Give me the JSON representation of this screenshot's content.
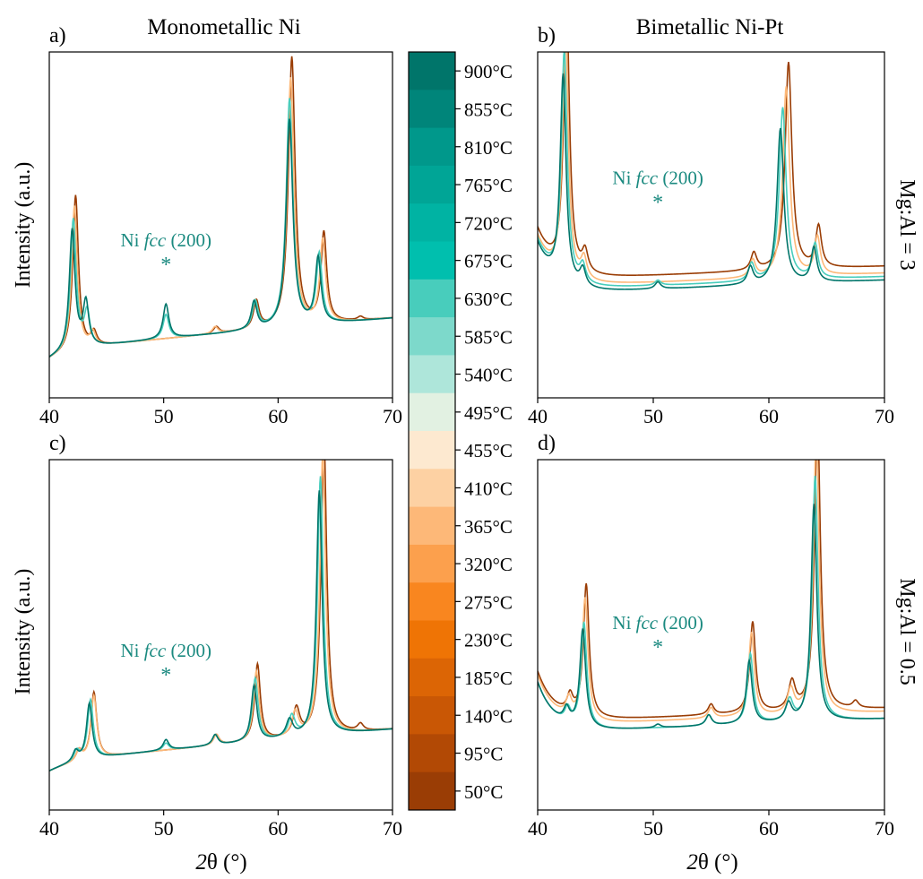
{
  "labels": {
    "title_left": "Monometallic Ni",
    "title_right": "Bimetallic Ni-Pt",
    "ylabel": "Intensity (a.u.)",
    "xlabel_theta": "θ (°)",
    "xlabel_two": "2",
    "row_top": "Mg:Al = 3",
    "row_bottom": "Mg:Al = 0.5",
    "annotation_prefix": "Ni ",
    "annotation_italic": "fcc",
    "annotation_suffix": " (200)",
    "asterisk": "*"
  },
  "colors": {
    "teal": "#1b8a80",
    "orange": "#c0611a",
    "frame": "#000000"
  },
  "colorbar": {
    "labels": [
      "900°C",
      "855°C",
      "810°C",
      "765°C",
      "720°C",
      "675°C",
      "630°C",
      "585°C",
      "540°C",
      "495°C",
      "455°C",
      "410°C",
      "365°C",
      "320°C",
      "275°C",
      "230°C",
      "185°C",
      "140°C",
      "95°C",
      "50°C"
    ],
    "colors": [
      "#00756a",
      "#00857a",
      "#00988b",
      "#00a596",
      "#00b3a3",
      "#00bfae",
      "#48cdbc",
      "#7dd9cb",
      "#aee6da",
      "#e2f1e2",
      "#fde9d0",
      "#fdd1a3",
      "#fdb878",
      "#fca04d",
      "#f9861f",
      "#ef7405",
      "#dc6505",
      "#c95705",
      "#b24905",
      "#9a3d05"
    ]
  },
  "chart_data": [
    {
      "type": "line",
      "panel": "a)",
      "title": "Monometallic Ni",
      "ylabel": "Intensity (a.u.)",
      "xlabel": "",
      "xlim": [
        40,
        70
      ],
      "xticks": [
        40,
        50,
        60,
        70
      ],
      "yticks": [],
      "baseline": 0.14,
      "annotation": {
        "x": 50.2,
        "text": "Ni fcc (200)"
      },
      "series": [
        {
          "temp": "50°C",
          "color": "#9a3d05",
          "baseline_drift": 0.0,
          "peaks": [
            [
              42.3,
              0.45,
              0.3
            ],
            [
              43.9,
              0.04,
              0.3
            ],
            [
              54.6,
              0.02,
              0.3
            ],
            [
              58.1,
              0.08,
              0.3
            ],
            [
              61.2,
              0.78,
              0.35
            ],
            [
              64.0,
              0.26,
              0.3
            ],
            [
              67.2,
              0.01,
              0.3
            ]
          ]
        },
        {
          "temp": "495°C",
          "color": "#fdb878",
          "baseline_drift": 0.0,
          "peaks": [
            [
              42.2,
              0.42,
              0.3
            ],
            [
              43.8,
              0.04,
              0.3
            ],
            [
              54.5,
              0.02,
              0.3
            ],
            [
              58.0,
              0.08,
              0.3
            ],
            [
              61.1,
              0.72,
              0.35
            ],
            [
              63.9,
              0.24,
              0.3
            ]
          ]
        },
        {
          "temp": "720°C",
          "color": "#48cdbc",
          "baseline_drift": 0.0,
          "peaks": [
            [
              42.1,
              0.38,
              0.3
            ],
            [
              43.3,
              0.1,
              0.3
            ],
            [
              50.2,
              0.07,
              0.3
            ],
            [
              58.0,
              0.08,
              0.3
            ],
            [
              61.0,
              0.66,
              0.35
            ],
            [
              63.6,
              0.2,
              0.3
            ]
          ]
        },
        {
          "temp": "900°C",
          "color": "#00756a",
          "baseline_drift": 0.0,
          "peaks": [
            [
              42.0,
              0.35,
              0.3
            ],
            [
              43.2,
              0.13,
              0.3
            ],
            [
              50.2,
              0.1,
              0.3
            ],
            [
              57.9,
              0.08,
              0.3
            ],
            [
              61.0,
              0.6,
              0.35
            ],
            [
              63.5,
              0.19,
              0.3
            ]
          ]
        }
      ]
    },
    {
      "type": "line",
      "panel": "b)",
      "title": "Bimetallic Ni-Pt",
      "ylabel": "",
      "xlabel": "",
      "xlim": [
        40,
        70
      ],
      "xticks": [
        40,
        50,
        60,
        70
      ],
      "yticks": [],
      "baseline": 0.32,
      "annotation": {
        "x": 50.4,
        "text": "Ni fcc (200)"
      },
      "series": [
        {
          "temp": "50°C",
          "color": "#9a3d05",
          "baseline_drift": 0.02,
          "peaks": [
            [
              42.5,
              0.78,
              0.3
            ],
            [
              44.1,
              0.06,
              0.3
            ],
            [
              58.7,
              0.05,
              0.3
            ],
            [
              61.7,
              0.6,
              0.35
            ],
            [
              64.3,
              0.12,
              0.3
            ]
          ]
        },
        {
          "temp": "495°C",
          "color": "#fdb878",
          "baseline_drift": 0.0,
          "peaks": [
            [
              42.4,
              0.72,
              0.3
            ],
            [
              44.0,
              0.06,
              0.3
            ],
            [
              58.6,
              0.05,
              0.3
            ],
            [
              61.5,
              0.55,
              0.35
            ],
            [
              64.2,
              0.11,
              0.3
            ]
          ]
        },
        {
          "temp": "720°C",
          "color": "#48cdbc",
          "baseline_drift": -0.01,
          "peaks": [
            [
              42.3,
              0.66,
              0.3
            ],
            [
              43.9,
              0.05,
              0.3
            ],
            [
              50.4,
              0.015,
              0.3
            ],
            [
              58.5,
              0.05,
              0.3
            ],
            [
              61.2,
              0.5,
              0.35
            ],
            [
              64.0,
              0.1,
              0.3
            ]
          ]
        },
        {
          "temp": "900°C",
          "color": "#00756a",
          "baseline_drift": -0.02,
          "peaks": [
            [
              42.2,
              0.6,
              0.3
            ],
            [
              43.9,
              0.05,
              0.3
            ],
            [
              50.4,
              0.02,
              0.3
            ],
            [
              58.4,
              0.05,
              0.3
            ],
            [
              61.0,
              0.45,
              0.35
            ],
            [
              63.9,
              0.1,
              0.3
            ]
          ]
        }
      ]
    },
    {
      "type": "line",
      "panel": "c)",
      "title": "",
      "ylabel": "Intensity (a.u.)",
      "xlabel": "2θ (°)",
      "xlim": [
        40,
        70
      ],
      "xticks": [
        40,
        50,
        60,
        70
      ],
      "yticks": [],
      "baseline": 0.14,
      "annotation": {
        "x": 50.2,
        "text": "Ni fcc (200)"
      },
      "series": [
        {
          "temp": "50°C",
          "color": "#9a3d05",
          "baseline_drift": 0.0,
          "peaks": [
            [
              42.6,
              0.03,
              0.3
            ],
            [
              43.9,
              0.19,
              0.3
            ],
            [
              54.6,
              0.03,
              0.3
            ],
            [
              58.2,
              0.22,
              0.3
            ],
            [
              61.6,
              0.08,
              0.35
            ],
            [
              64.0,
              0.86,
              0.3
            ],
            [
              67.2,
              0.02,
              0.3
            ]
          ]
        },
        {
          "temp": "495°C",
          "color": "#fdb878",
          "baseline_drift": 0.0,
          "peaks": [
            [
              42.6,
              0.03,
              0.3
            ],
            [
              43.9,
              0.18,
              0.3
            ],
            [
              54.6,
              0.03,
              0.3
            ],
            [
              58.1,
              0.2,
              0.3
            ],
            [
              61.5,
              0.07,
              0.35
            ],
            [
              63.9,
              0.8,
              0.3
            ]
          ]
        },
        {
          "temp": "720°C",
          "color": "#48cdbc",
          "baseline_drift": 0.0,
          "peaks": [
            [
              42.4,
              0.03,
              0.3
            ],
            [
              43.6,
              0.17,
              0.3
            ],
            [
              50.2,
              0.02,
              0.3
            ],
            [
              54.5,
              0.03,
              0.3
            ],
            [
              58.0,
              0.18,
              0.3
            ],
            [
              61.2,
              0.06,
              0.35
            ],
            [
              63.7,
              0.74,
              0.3
            ]
          ]
        },
        {
          "temp": "900°C",
          "color": "#00756a",
          "baseline_drift": 0.0,
          "peaks": [
            [
              42.3,
              0.03,
              0.3
            ],
            [
              43.5,
              0.16,
              0.3
            ],
            [
              50.2,
              0.03,
              0.3
            ],
            [
              54.5,
              0.03,
              0.3
            ],
            [
              57.9,
              0.16,
              0.3
            ],
            [
              61.0,
              0.05,
              0.35
            ],
            [
              63.6,
              0.7,
              0.3
            ]
          ]
        }
      ]
    },
    {
      "type": "line",
      "panel": "d)",
      "title": "",
      "ylabel": "",
      "xlabel": "2θ (°)",
      "xlim": [
        40,
        70
      ],
      "xticks": [
        40,
        50,
        60,
        70
      ],
      "yticks": [],
      "baseline": 0.22,
      "annotation": {
        "x": 50.4,
        "text": "Ni fcc (200)"
      },
      "series": [
        {
          "temp": "50°C",
          "color": "#9a3d05",
          "baseline_drift": 0.03,
          "peaks": [
            [
              42.8,
              0.05,
              0.3
            ],
            [
              44.2,
              0.38,
              0.3
            ],
            [
              55.0,
              0.03,
              0.3
            ],
            [
              58.6,
              0.26,
              0.3
            ],
            [
              62.0,
              0.08,
              0.35
            ],
            [
              64.2,
              0.85,
              0.3
            ],
            [
              67.5,
              0.02,
              0.3
            ]
          ]
        },
        {
          "temp": "495°C",
          "color": "#fdb878",
          "baseline_drift": 0.02,
          "peaks": [
            [
              42.7,
              0.05,
              0.3
            ],
            [
              44.1,
              0.35,
              0.3
            ],
            [
              55.0,
              0.03,
              0.3
            ],
            [
              58.5,
              0.24,
              0.3
            ],
            [
              61.9,
              0.07,
              0.35
            ],
            [
              64.1,
              0.8,
              0.3
            ]
          ]
        },
        {
          "temp": "720°C",
          "color": "#48cdbc",
          "baseline_drift": 0.0,
          "peaks": [
            [
              42.6,
              0.04,
              0.3
            ],
            [
              44.0,
              0.3,
              0.3
            ],
            [
              54.8,
              0.03,
              0.3
            ],
            [
              58.4,
              0.2,
              0.3
            ],
            [
              61.8,
              0.06,
              0.35
            ],
            [
              64.0,
              0.7,
              0.3
            ]
          ]
        },
        {
          "temp": "900°C",
          "color": "#00756a",
          "baseline_drift": 0.0,
          "peaks": [
            [
              42.5,
              0.04,
              0.3
            ],
            [
              43.9,
              0.28,
              0.3
            ],
            [
              50.4,
              0.01,
              0.3
            ],
            [
              54.8,
              0.03,
              0.3
            ],
            [
              58.3,
              0.18,
              0.3
            ],
            [
              61.7,
              0.05,
              0.35
            ],
            [
              63.9,
              0.62,
              0.3
            ]
          ]
        }
      ]
    }
  ]
}
